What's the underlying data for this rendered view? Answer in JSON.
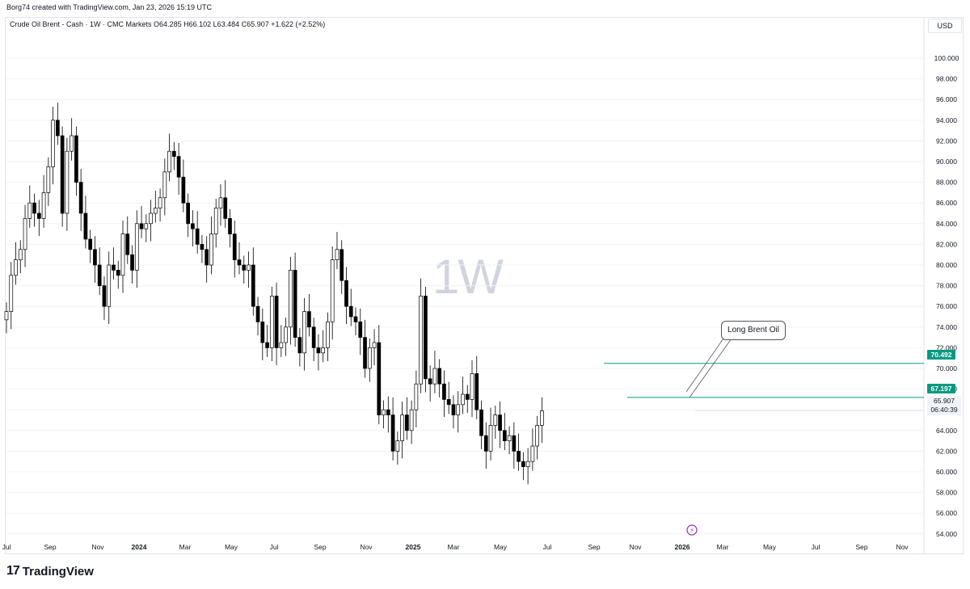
{
  "header": {
    "credit": "Borg74 created with TradingView.com, Jan 23, 2026 15:19 UTC",
    "symbol_line": "Crude Oil Brent - Cash · 1W · CMC Markets",
    "open": "O64.285",
    "high": "H66.102",
    "low": "L63.484",
    "close": "C65.907",
    "change": "+1.622 (+2.52%)",
    "currency": "USD",
    "interval_watermark": "1W"
  },
  "footer": {
    "brand_mark": "17",
    "brand_name": "TradingView"
  },
  "colors": {
    "level_line": "#089981",
    "badge_bg": "#089981",
    "up": "#ffffff",
    "down": "#000000",
    "grid": "#f0f3fa",
    "pointer_icon": "#9c27b0"
  },
  "annotations": {
    "callout_text": "Long Brent Oil",
    "last_price": "65.907",
    "countdown": "06:40:39",
    "level_upper": "70.492",
    "level_lower": "67.197"
  },
  "chart_data": {
    "type": "candlestick",
    "title": "Crude Oil Brent - Cash · 1W · CMC Markets",
    "ylim": [
      52.5,
      102.5
    ],
    "y_ticks": [
      54,
      56,
      58,
      60,
      62,
      64,
      66,
      68,
      70,
      72,
      74,
      76,
      78,
      80,
      82,
      84,
      86,
      88,
      90,
      92,
      94,
      96,
      98,
      100
    ],
    "y_tick_labels": [
      "54.000",
      "56.000",
      "58.000",
      "60.000",
      "62.000",
      "64.000",
      "66.000",
      "68.000",
      "70.000",
      "72.000",
      "74.000",
      "76.000",
      "78.000",
      "80.000",
      "82.000",
      "84.000",
      "86.000",
      "88.000",
      "90.000",
      "92.000",
      "94.000",
      "96.000",
      "98.000",
      "100.000"
    ],
    "x_labels": [
      "Jul",
      "Sep",
      "Nov",
      "2024",
      "Mar",
      "May",
      "Jul",
      "Sep",
      "Nov",
      "2025",
      "Mar",
      "May",
      "Jul",
      "Sep",
      "Nov",
      "2026",
      "Mar",
      "May",
      "Jul",
      "Sep",
      "Nov"
    ],
    "x_label_bold": [
      "2024",
      "2025",
      "2026"
    ],
    "horizontal_levels": [
      70.492,
      67.197
    ],
    "closes": [
      75.5,
      79.0,
      80.5,
      81.5,
      84.5,
      86.0,
      85.0,
      84.5,
      87.0,
      89.5,
      94.0,
      92.5,
      85.0,
      91.0,
      92.5,
      88.0,
      85.0,
      82.5,
      81.5,
      80.0,
      78.0,
      76.0,
      80.0,
      79.5,
      79.0,
      83.0,
      81.0,
      79.5,
      84.0,
      83.5,
      84.0,
      85.0,
      85.5,
      86.5,
      89.0,
      91.0,
      90.5,
      88.5,
      86.0,
      84.0,
      83.5,
      82.0,
      81.5,
      80.0,
      83.0,
      85.5,
      86.5,
      84.5,
      83.0,
      80.5,
      80.0,
      79.5,
      80.0,
      76.0,
      74.5,
      72.5,
      72.0,
      77.0,
      72.0,
      72.5,
      74.0,
      79.5,
      73.0,
      71.5,
      75.5,
      74.0,
      72.0,
      71.5,
      72.0,
      74.5,
      80.5,
      81.5,
      78.5,
      76.0,
      75.0,
      74.5,
      73.0,
      70.0,
      72.0,
      72.5,
      65.5,
      66.0,
      65.5,
      62.0,
      63.0,
      65.5,
      64.0,
      66.0,
      68.5,
      77.0,
      69.0,
      68.5,
      70.0,
      68.5,
      67.0,
      66.5,
      65.5,
      66.5,
      67.5,
      67.0,
      69.5,
      66.0,
      63.5,
      62.0,
      64.5,
      65.5,
      64.0,
      63.0,
      63.5,
      62.0,
      61.0,
      60.5,
      61.0,
      62.5,
      64.5,
      65.907
    ],
    "series_note": "weekly OHLC, approximate reading"
  }
}
